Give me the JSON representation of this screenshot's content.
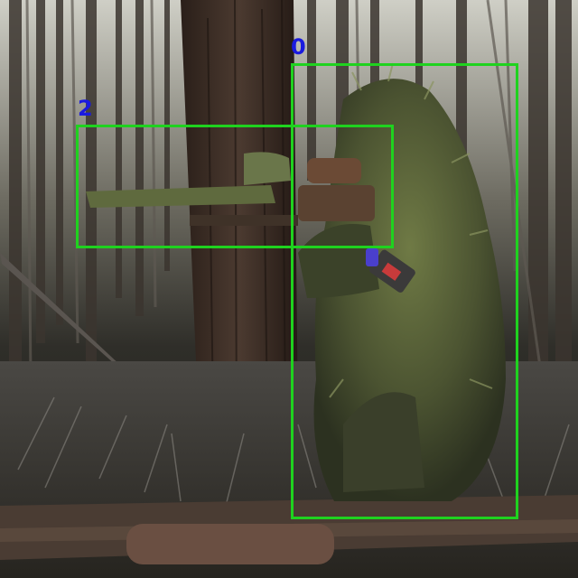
{
  "image": {
    "scene": "forest-sniper-ghillie-suit-photo"
  },
  "detections": [
    {
      "label": "0",
      "color": "#1fd21f",
      "label_color": "#1a1adf"
    },
    {
      "label": "2",
      "color": "#1fd21f",
      "label_color": "#1a1adf"
    }
  ]
}
